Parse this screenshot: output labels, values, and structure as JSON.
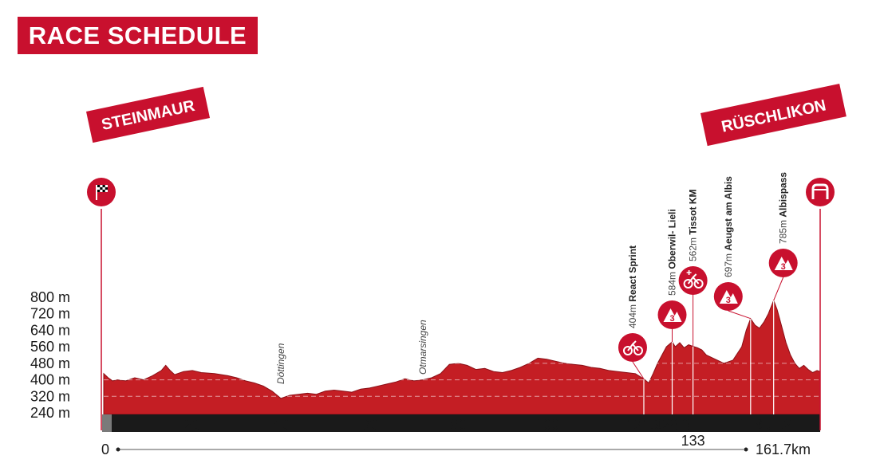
{
  "header": {
    "title": "RACE SCHEDULE"
  },
  "colors": {
    "accent": "#c8102e",
    "profile_fill": "#c41e24",
    "bar": "#1a1a1a"
  },
  "icons": {
    "start": "checkered-flag-icon",
    "finish": "finish-arch-icon",
    "sprint": "cyclist-icon",
    "bonus": "cyclist-bonus-icon",
    "climb": "mountain-cat3-icon"
  },
  "chart_data": {
    "type": "area",
    "title": "RACE SCHEDULE",
    "start_town": "STEINMAUR",
    "finish_town": "RÜSCHLIKON",
    "xlim": [
      0,
      161.7
    ],
    "ylim": [
      200,
      850
    ],
    "y_ticks": [
      "800 m",
      "720 m",
      "640 m",
      "560 m",
      "480 m",
      "400 m",
      "320 m",
      "240 m"
    ],
    "y_tick_values": [
      800,
      720,
      640,
      560,
      480,
      400,
      320,
      240
    ],
    "x_ticks": [
      "20",
      "40",
      "60",
      "80",
      "100",
      "121.9",
      "128.3",
      "133",
      "146",
      "151.2"
    ],
    "x_tick_values": [
      20,
      40,
      60,
      80,
      100,
      121.9,
      128.3,
      133,
      146,
      151.2
    ],
    "distance_start": "0",
    "distance_total": "161.7km",
    "profile": [
      [
        0,
        430
      ],
      [
        1,
        410
      ],
      [
        2,
        395
      ],
      [
        3,
        400
      ],
      [
        5,
        395
      ],
      [
        7,
        410
      ],
      [
        9,
        400
      ],
      [
        11,
        420
      ],
      [
        13,
        445
      ],
      [
        14,
        470
      ],
      [
        15,
        445
      ],
      [
        16,
        425
      ],
      [
        18,
        440
      ],
      [
        20,
        445
      ],
      [
        22,
        435
      ],
      [
        25,
        430
      ],
      [
        28,
        420
      ],
      [
        30,
        410
      ],
      [
        32,
        395
      ],
      [
        34,
        385
      ],
      [
        36,
        370
      ],
      [
        38,
        345
      ],
      [
        40,
        310
      ],
      [
        42,
        325
      ],
      [
        44,
        330
      ],
      [
        46,
        335
      ],
      [
        48,
        330
      ],
      [
        50,
        345
      ],
      [
        52,
        350
      ],
      [
        54,
        345
      ],
      [
        56,
        340
      ],
      [
        58,
        355
      ],
      [
        60,
        360
      ],
      [
        62,
        370
      ],
      [
        64,
        380
      ],
      [
        66,
        390
      ],
      [
        68,
        405
      ],
      [
        70,
        395
      ],
      [
        72,
        400
      ],
      [
        74,
        410
      ],
      [
        76,
        430
      ],
      [
        78,
        475
      ],
      [
        80,
        480
      ],
      [
        82,
        470
      ],
      [
        84,
        450
      ],
      [
        86,
        455
      ],
      [
        88,
        440
      ],
      [
        90,
        435
      ],
      [
        92,
        445
      ],
      [
        94,
        460
      ],
      [
        96,
        480
      ],
      [
        98,
        505
      ],
      [
        100,
        500
      ],
      [
        102,
        490
      ],
      [
        104,
        480
      ],
      [
        106,
        475
      ],
      [
        108,
        470
      ],
      [
        110,
        460
      ],
      [
        112,
        455
      ],
      [
        114,
        445
      ],
      [
        116,
        440
      ],
      [
        118,
        435
      ],
      [
        120,
        430
      ],
      [
        121.9,
        404
      ],
      [
        123,
        385
      ],
      [
        124,
        430
      ],
      [
        125,
        480
      ],
      [
        126,
        520
      ],
      [
        127,
        560
      ],
      [
        128.3,
        584
      ],
      [
        129,
        560
      ],
      [
        130,
        580
      ],
      [
        131,
        555
      ],
      [
        132,
        570
      ],
      [
        133,
        562
      ],
      [
        134,
        555
      ],
      [
        135,
        545
      ],
      [
        136,
        520
      ],
      [
        138,
        500
      ],
      [
        140,
        480
      ],
      [
        142,
        495
      ],
      [
        144,
        560
      ],
      [
        145,
        640
      ],
      [
        146,
        697
      ],
      [
        147,
        665
      ],
      [
        148,
        650
      ],
      [
        149,
        680
      ],
      [
        150,
        720
      ],
      [
        151.2,
        785
      ],
      [
        152,
        740
      ],
      [
        153,
        660
      ],
      [
        154,
        580
      ],
      [
        155,
        520
      ],
      [
        156,
        480
      ],
      [
        157,
        455
      ],
      [
        158,
        470
      ],
      [
        159,
        450
      ],
      [
        160,
        435
      ],
      [
        161,
        445
      ],
      [
        161.7,
        440
      ]
    ],
    "points": [
      {
        "km": 121.9,
        "alt": "404m",
        "name": "React Sprint",
        "icon": "sprint"
      },
      {
        "km": 128.3,
        "alt": "584m",
        "name": "Oberwil- Lieli",
        "icon": "climb",
        "cat": "3"
      },
      {
        "km": 133,
        "alt": "562m",
        "name": "Tissot KM",
        "icon": "bonus"
      },
      {
        "km": 146,
        "alt": "697m",
        "name": "Aeugst am Albis",
        "icon": "climb",
        "cat": "3"
      },
      {
        "km": 151.2,
        "alt": "785m",
        "name": "Albispass",
        "icon": "climb",
        "cat": "3"
      }
    ],
    "towns": [
      {
        "km": 40,
        "name": "Döttingen"
      },
      {
        "km": 72,
        "name": "Otmarsingen"
      }
    ]
  }
}
